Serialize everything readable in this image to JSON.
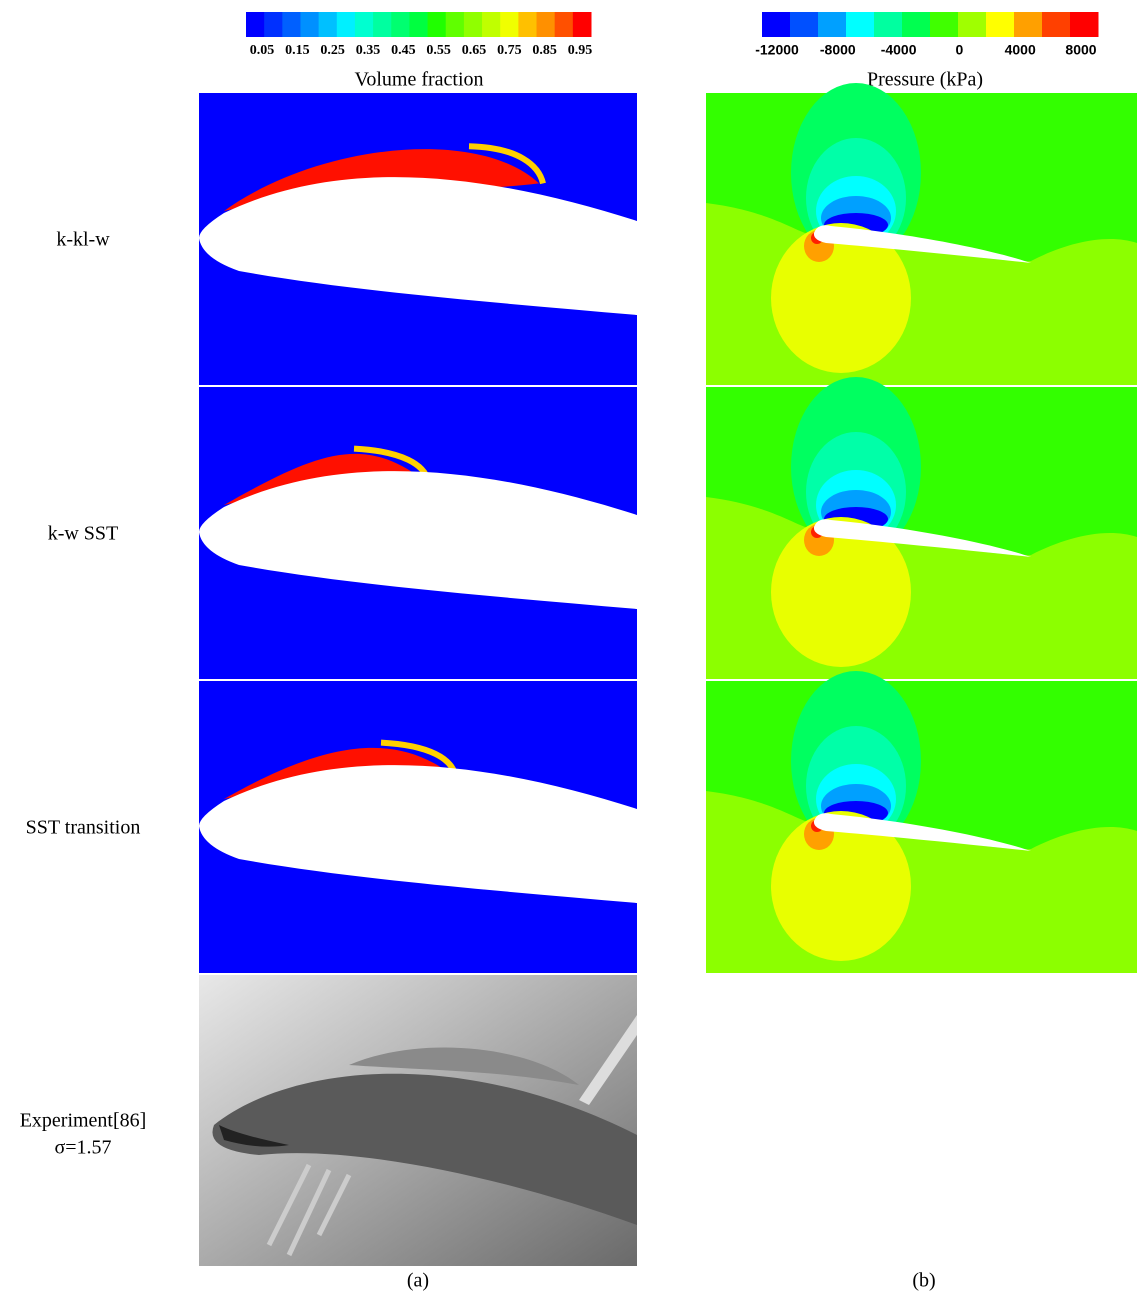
{
  "figure": {
    "colorbars": [
      {
        "title": "Volume fraction",
        "ticks": [
          "0.05",
          "0.15",
          "0.25",
          "0.35",
          "0.45",
          "0.55",
          "0.65",
          "0.75",
          "0.85",
          "0.95"
        ],
        "colors": [
          "#0000ff",
          "#0030ff",
          "#0060ff",
          "#0090ff",
          "#00c0ff",
          "#00f0ff",
          "#00ffd0",
          "#00ffa0",
          "#00ff70",
          "#00ff40",
          "#20ff00",
          "#60ff00",
          "#90ff00",
          "#c0ff00",
          "#f0ff00",
          "#ffc000",
          "#ff9000",
          "#ff5000",
          "#ff0000"
        ]
      },
      {
        "title": "Pressure (kPa)",
        "ticks": [
          "-12000",
          "-8000",
          "-4000",
          "0",
          "4000",
          "8000"
        ],
        "colors": [
          "#0000ff",
          "#0050ff",
          "#00a0ff",
          "#00ffff",
          "#00ffa0",
          "#00ff50",
          "#40ff00",
          "#a0ff00",
          "#ffff00",
          "#ffa000",
          "#ff4000",
          "#ff0000"
        ]
      }
    ],
    "rows": [
      {
        "label": "k-kl-w"
      },
      {
        "label": "k-w SST"
      },
      {
        "label": "SST transition"
      },
      {
        "label": "Experiment[86]",
        "sublabel": "σ=1.57"
      }
    ],
    "panel_labels": [
      "(a)",
      "(b)"
    ]
  }
}
